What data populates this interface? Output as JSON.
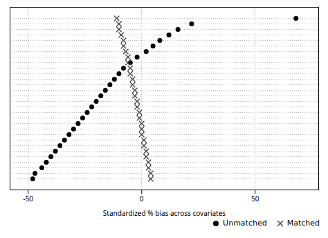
{
  "chart_data": {
    "type": "dot",
    "orientation": "horizontal",
    "categories": [
      null,
      null,
      null,
      null,
      null,
      null,
      null,
      null,
      null,
      null,
      null,
      null,
      null,
      null,
      null,
      null,
      null,
      null,
      null,
      null,
      null,
      null,
      null,
      null,
      null,
      null,
      null,
      null,
      null,
      null
    ],
    "series": [
      {
        "name": "Unmatched",
        "color": "#000000",
        "marker": "circle",
        "values": [
          -48,
          -47,
          -44,
          -42,
          -40,
          -38,
          -36,
          -34,
          -32,
          -30,
          -28,
          -26,
          -24,
          -22,
          -20,
          -18,
          -16,
          -14,
          -12,
          -10,
          -8,
          -5,
          -2,
          2,
          5,
          8,
          12,
          16,
          22,
          68
        ]
      },
      {
        "name": "Matched",
        "color": "#444444",
        "marker": "x",
        "values": [
          4,
          4,
          3,
          3,
          2,
          2,
          1,
          1,
          0,
          0,
          0,
          -1,
          -1,
          -2,
          -2,
          -3,
          -3,
          -4,
          -4,
          -5,
          -5,
          -6,
          -6,
          -7,
          -8,
          -8,
          -9,
          -10,
          -10,
          -11
        ]
      }
    ],
    "xlim": [
      -58,
      78
    ],
    "xticks": [
      -50,
      0,
      50
    ],
    "xlabel": "Standardized % bias across covariates",
    "tick_labels": "x",
    "grid": true,
    "legend": "lower right"
  }
}
